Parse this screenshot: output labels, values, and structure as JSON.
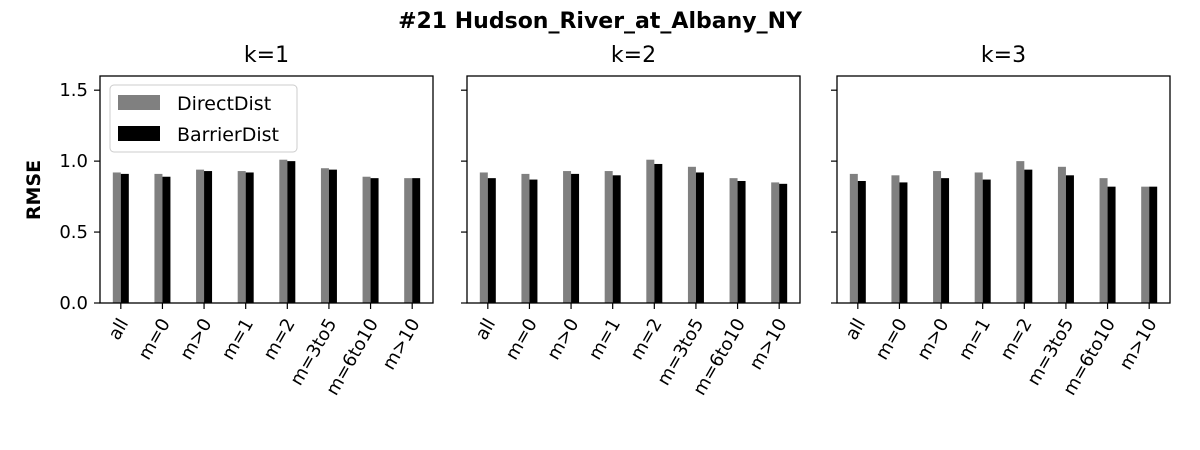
{
  "figure": {
    "title": "#21 Hudson_River_at_Albany_NY",
    "ylabel": "RMSE"
  },
  "colors": {
    "DirectDist": "#808080",
    "BarrierDist": "#000000"
  },
  "legend": {
    "placement": "upper-left",
    "entries": [
      "DirectDist",
      "BarrierDist"
    ]
  },
  "chart_data": [
    {
      "type": "bar",
      "title": "k=1",
      "categories": [
        "all",
        "m=0",
        "m>0",
        "m=1",
        "m=2",
        "m=3to5",
        "m=6to10",
        "m>10"
      ],
      "series": [
        {
          "name": "DirectDist",
          "values": [
            0.92,
            0.91,
            0.94,
            0.93,
            1.01,
            0.95,
            0.89,
            0.88
          ]
        },
        {
          "name": "BarrierDist",
          "values": [
            0.91,
            0.89,
            0.93,
            0.92,
            1.0,
            0.94,
            0.88,
            0.88
          ]
        }
      ],
      "ylim": [
        0,
        1.6
      ],
      "yticks": [
        "0.0",
        "0.5",
        "1.0",
        "1.5"
      ],
      "show_legend": true
    },
    {
      "type": "bar",
      "title": "k=2",
      "categories": [
        "all",
        "m=0",
        "m>0",
        "m=1",
        "m=2",
        "m=3to5",
        "m=6to10",
        "m>10"
      ],
      "series": [
        {
          "name": "DirectDist",
          "values": [
            0.92,
            0.91,
            0.93,
            0.93,
            1.01,
            0.96,
            0.88,
            0.85
          ]
        },
        {
          "name": "BarrierDist",
          "values": [
            0.88,
            0.87,
            0.91,
            0.9,
            0.98,
            0.92,
            0.86,
            0.84
          ]
        }
      ],
      "ylim": [
        0,
        1.6
      ],
      "yticks": [
        "0.0",
        "0.5",
        "1.0",
        "1.5"
      ],
      "show_legend": false
    },
    {
      "type": "bar",
      "title": "k=3",
      "categories": [
        "all",
        "m=0",
        "m>0",
        "m=1",
        "m=2",
        "m=3to5",
        "m=6to10",
        "m>10"
      ],
      "series": [
        {
          "name": "DirectDist",
          "values": [
            0.91,
            0.9,
            0.93,
            0.92,
            1.0,
            0.96,
            0.88,
            0.82
          ]
        },
        {
          "name": "BarrierDist",
          "values": [
            0.86,
            0.85,
            0.88,
            0.87,
            0.94,
            0.9,
            0.82,
            0.82
          ]
        }
      ],
      "ylim": [
        0,
        1.6
      ],
      "yticks": [
        "0.0",
        "0.5",
        "1.0",
        "1.5"
      ],
      "show_legend": false
    }
  ]
}
